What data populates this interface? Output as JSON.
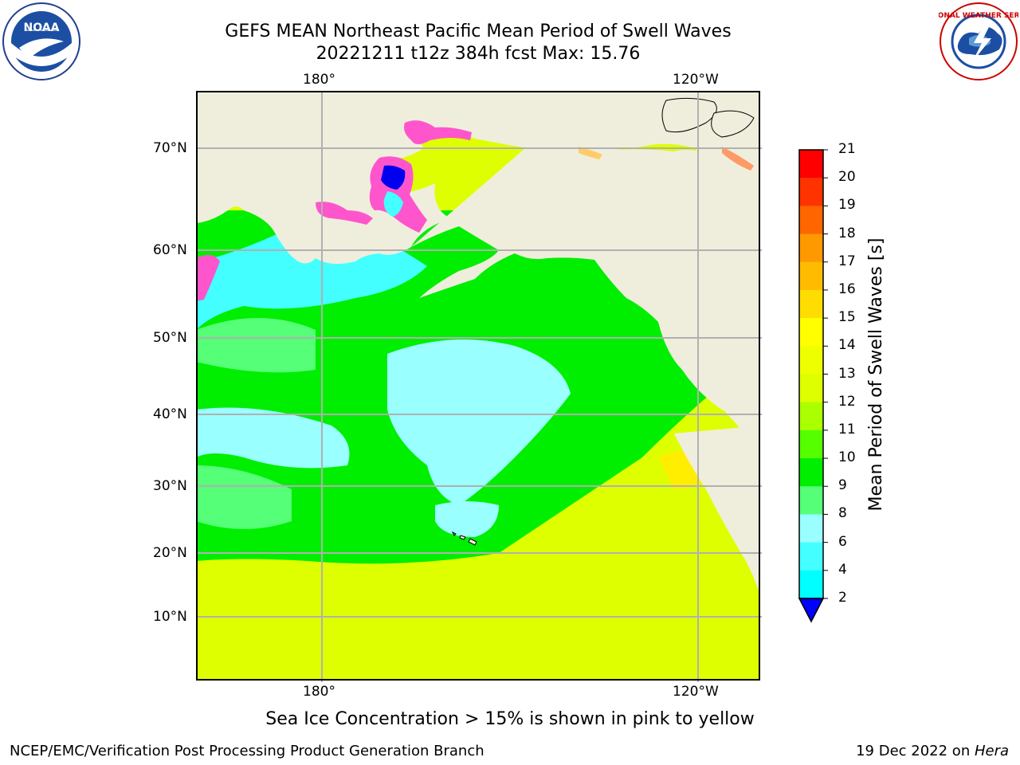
{
  "header": {
    "title_line1": "GEFS MEAN Northeast Pacific Mean Period of Swell Waves",
    "title_line2": "20221211 t12z 384h fcst   Max: 15.76"
  },
  "logos": {
    "left": "noara-logo",
    "left_text": "NOAA",
    "right": "nws-logo",
    "right_text": "NATIONAL WEATHER SERVICE"
  },
  "map": {
    "top_lon_labels": [
      "180°",
      "120°W"
    ],
    "bottom_lon_labels": [
      "180°",
      "120°W"
    ],
    "lat_labels": [
      "70°N",
      "60°N",
      "50°N",
      "40°N",
      "30°N",
      "20°N",
      "10°N"
    ],
    "colors": {
      "land": "#efeedd",
      "ocean_yellow": "#deff00",
      "ocean_green": "#00ee00",
      "ocean_lightgreen": "#55ff77",
      "ocean_cyan": "#44ffff",
      "ocean_lightcyan": "#99ffff",
      "ice_pink": "#ff55cc",
      "deep_blue": "#0000ee"
    }
  },
  "colorbar": {
    "ticks": [
      "21",
      "20",
      "19",
      "18",
      "17",
      "16",
      "15",
      "14",
      "13",
      "12",
      "11",
      "10",
      "9",
      "8",
      "6",
      "4",
      "2"
    ],
    "colors": [
      "#ff0000",
      "#ff3300",
      "#ff6600",
      "#ff9900",
      "#ffbb00",
      "#ffdd00",
      "#ffff00",
      "#eeff00",
      "#ddff00",
      "#aaff00",
      "#55ff00",
      "#00ee00",
      "#55ff77",
      "#99ffff",
      "#44ffff",
      "#00ffff",
      "#0088ff",
      "#0000ff"
    ],
    "label": "Mean Period of Swell Waves [s]"
  },
  "notes": {
    "sea_ice": "Sea Ice Concentration > 15% is shown in pink to yellow"
  },
  "footer": {
    "left": "NCEP/EMC/Verification Post Processing Product Generation Branch",
    "date": "19 Dec 2022 on ",
    "host": "Hera"
  }
}
